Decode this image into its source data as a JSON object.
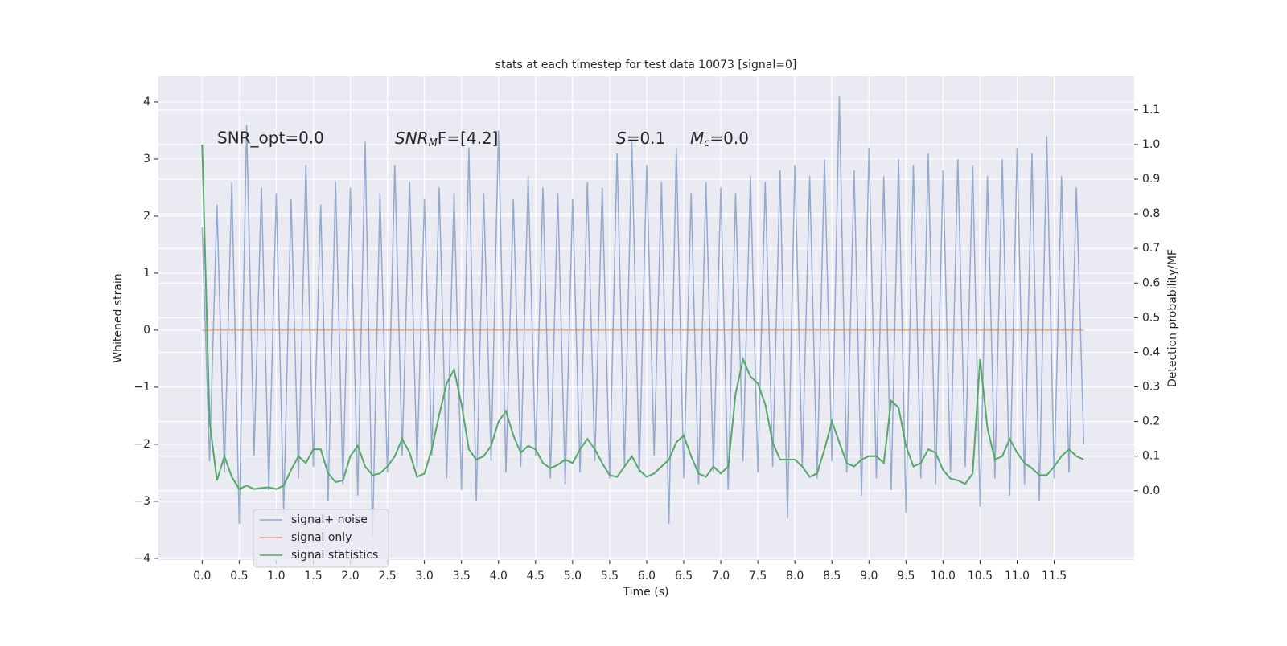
{
  "chart_data": {
    "type": "line",
    "title": "stats at each timestep for test data 10073 [signal=0]",
    "xlabel": "Time (s)",
    "ylabel": "Whitened strain",
    "y2label": "Detection probability/MF",
    "grid": true,
    "legend": "lower left",
    "annotations": [
      {
        "text": "SNR_opt=0.0"
      },
      {
        "symbol": "SNR",
        "subscript": "M",
        "rest": "F=[4.2]"
      },
      {
        "symbol": "S",
        "rest": "=0.1"
      },
      {
        "symbol": "M",
        "subscript": "c",
        "rest": "=0.0"
      }
    ],
    "xlim": [
      -0.59,
      12.58
    ],
    "ylim": [
      -4.03,
      4.45
    ],
    "y2lim": [
      -0.2,
      1.197
    ],
    "xticks": [
      {
        "value": 0,
        "label": "0.0"
      },
      0.5,
      {
        "value": 1,
        "label": "1.0"
      },
      1.5,
      {
        "value": 2,
        "label": "2.0"
      },
      2.5,
      {
        "value": 3,
        "label": "3.0"
      },
      3.5,
      {
        "value": 4,
        "label": "4.0"
      },
      4.5,
      {
        "value": 5,
        "label": "5.0"
      },
      5.5,
      {
        "value": 6,
        "label": "6.0"
      },
      6.5,
      {
        "value": 7,
        "label": "7.0"
      },
      7.5,
      {
        "value": 8,
        "label": "8.0"
      },
      8.5,
      {
        "value": 9,
        "label": "9.0"
      },
      9.5,
      {
        "value": 10,
        "label": "10.0"
      },
      10.5,
      {
        "value": 11,
        "label": "11.0"
      },
      11.5
    ],
    "yticks": [
      {
        "value": -4,
        "label": "−4"
      },
      {
        "value": -3,
        "label": "−3"
      },
      {
        "value": -2,
        "label": "−2"
      },
      {
        "value": -1,
        "label": "−1"
      },
      0,
      1,
      2,
      3,
      4
    ],
    "y2ticks": [
      {
        "value": 0,
        "label": "0.0"
      },
      0.1,
      0.2,
      0.3,
      0.4,
      0.5,
      0.6,
      0.7,
      0.8,
      0.9,
      {
        "value": 1,
        "label": "1.0"
      },
      1.1
    ],
    "x": [
      0.0,
      0.1,
      0.2,
      0.3,
      0.4,
      0.5,
      0.6,
      0.7,
      0.8,
      0.9,
      1.0,
      1.1,
      1.2,
      1.3,
      1.4,
      1.5,
      1.6,
      1.7,
      1.8,
      1.9,
      2.0,
      2.1,
      2.2,
      2.3,
      2.4,
      2.5,
      2.6,
      2.7,
      2.8,
      2.9,
      3.0,
      3.1,
      3.2,
      3.3,
      3.4,
      3.5,
      3.6,
      3.7,
      3.8,
      3.9,
      4.0,
      4.1,
      4.2,
      4.3,
      4.4,
      4.5,
      4.6,
      4.7,
      4.8,
      4.9,
      5.0,
      5.1,
      5.2,
      5.3,
      5.4,
      5.5,
      5.6,
      5.7,
      5.8,
      5.9,
      6.0,
      6.1,
      6.2,
      6.3,
      6.4,
      6.5,
      6.6,
      6.7,
      6.8,
      6.9,
      7.0,
      7.1,
      7.2,
      7.3,
      7.4,
      7.5,
      7.6,
      7.7,
      7.8,
      7.9,
      8.0,
      8.1,
      8.2,
      8.3,
      8.4,
      8.5,
      8.6,
      8.7,
      8.8,
      8.9,
      9.0,
      9.1,
      9.2,
      9.3,
      9.4,
      9.5,
      9.6,
      9.7,
      9.8,
      9.9,
      10.0,
      10.1,
      10.2,
      10.3,
      10.4,
      10.5,
      10.6,
      10.7,
      10.8,
      10.9,
      11.0,
      11.1,
      11.2,
      11.3,
      11.4,
      11.5,
      11.6,
      11.7,
      11.8,
      11.9
    ],
    "series": [
      {
        "name": "signal+ noise",
        "color": "#4c72b0",
        "values": [
          1.8,
          -2.3,
          2.2,
          -2.5,
          2.6,
          -3.4,
          3.6,
          -2.2,
          2.5,
          -2.8,
          2.4,
          -3.2,
          2.3,
          -2.6,
          2.9,
          -2.4,
          2.2,
          -3.0,
          2.6,
          -2.7,
          2.5,
          -2.9,
          3.3,
          -3.6,
          2.4,
          -2.5,
          2.9,
          -2.2,
          2.6,
          -2.4,
          2.3,
          -2.2,
          2.5,
          -2.6,
          2.4,
          -2.8,
          3.2,
          -3.0,
          2.4,
          -2.3,
          3.5,
          -2.5,
          2.3,
          -2.4,
          2.7,
          -2.2,
          2.5,
          -2.6,
          2.4,
          -2.7,
          2.3,
          -2.5,
          2.6,
          -2.3,
          2.5,
          -2.6,
          3.1,
          -2.4,
          3.3,
          -2.5,
          2.9,
          -2.2,
          2.6,
          -3.4,
          3.2,
          -2.6,
          2.4,
          -2.7,
          2.6,
          -2.5,
          2.5,
          -2.8,
          2.4,
          -2.3,
          2.7,
          -2.5,
          2.6,
          -2.4,
          2.8,
          -3.3,
          2.9,
          -2.4,
          2.7,
          -2.6,
          3.0,
          -2.3,
          4.1,
          -2.5,
          2.8,
          -2.9,
          3.2,
          -2.6,
          2.7,
          -2.8,
          3.0,
          -3.2,
          2.9,
          -2.6,
          3.1,
          -2.7,
          2.8,
          -2.5,
          3.0,
          -2.4,
          2.9,
          -3.1,
          2.7,
          -2.6,
          3.0,
          -2.9,
          3.2,
          -2.7,
          3.1,
          -3.0,
          3.4,
          -2.6,
          2.7,
          -2.5,
          2.5,
          -2.0
        ]
      },
      {
        "name": "signal only",
        "color": "#dd8452",
        "values": [
          0,
          0,
          0,
          0,
          0,
          0,
          0,
          0,
          0,
          0,
          0,
          0,
          0,
          0,
          0,
          0,
          0,
          0,
          0,
          0,
          0,
          0,
          0,
          0,
          0,
          0,
          0,
          0,
          0,
          0,
          0,
          0,
          0,
          0,
          0,
          0,
          0,
          0,
          0,
          0,
          0,
          0,
          0,
          0,
          0,
          0,
          0,
          0,
          0,
          0,
          0,
          0,
          0,
          0,
          0,
          0,
          0,
          0,
          0,
          0,
          0,
          0,
          0,
          0,
          0,
          0,
          0,
          0,
          0,
          0,
          0,
          0,
          0,
          0,
          0,
          0,
          0,
          0,
          0,
          0,
          0,
          0,
          0,
          0,
          0,
          0,
          0,
          0,
          0,
          0,
          0,
          0,
          0,
          0,
          0,
          0,
          0,
          0,
          0,
          0,
          0,
          0,
          0,
          0,
          0,
          0,
          0,
          0,
          0,
          0,
          0,
          0,
          0,
          0,
          0,
          0,
          0,
          0,
          0,
          0
        ]
      },
      {
        "name": "signal statistics",
        "color": "#55a868",
        "axis": "y2",
        "values": [
          1.0,
          0.2,
          0.03,
          0.1,
          0.04,
          0.005,
          0.015,
          0.005,
          0.008,
          0.01,
          0.005,
          0.015,
          0.06,
          0.1,
          0.08,
          0.12,
          0.12,
          0.05,
          0.025,
          0.03,
          0.1,
          0.13,
          0.07,
          0.045,
          0.05,
          0.07,
          0.1,
          0.15,
          0.11,
          0.04,
          0.05,
          0.12,
          0.22,
          0.31,
          0.35,
          0.25,
          0.12,
          0.09,
          0.1,
          0.13,
          0.2,
          0.23,
          0.16,
          0.11,
          0.13,
          0.12,
          0.08,
          0.065,
          0.075,
          0.09,
          0.08,
          0.12,
          0.15,
          0.12,
          0.08,
          0.045,
          0.04,
          0.07,
          0.1,
          0.06,
          0.04,
          0.05,
          0.07,
          0.09,
          0.14,
          0.16,
          0.1,
          0.05,
          0.04,
          0.07,
          0.05,
          0.07,
          0.28,
          0.38,
          0.33,
          0.31,
          0.25,
          0.14,
          0.09,
          0.09,
          0.09,
          0.07,
          0.04,
          0.05,
          0.12,
          0.2,
          0.14,
          0.08,
          0.07,
          0.09,
          0.1,
          0.1,
          0.08,
          0.26,
          0.24,
          0.13,
          0.07,
          0.08,
          0.12,
          0.11,
          0.06,
          0.035,
          0.03,
          0.02,
          0.05,
          0.38,
          0.18,
          0.09,
          0.1,
          0.15,
          0.11,
          0.08,
          0.065,
          0.045,
          0.045,
          0.07,
          0.1,
          0.12,
          0.1,
          0.09
        ]
      }
    ]
  }
}
